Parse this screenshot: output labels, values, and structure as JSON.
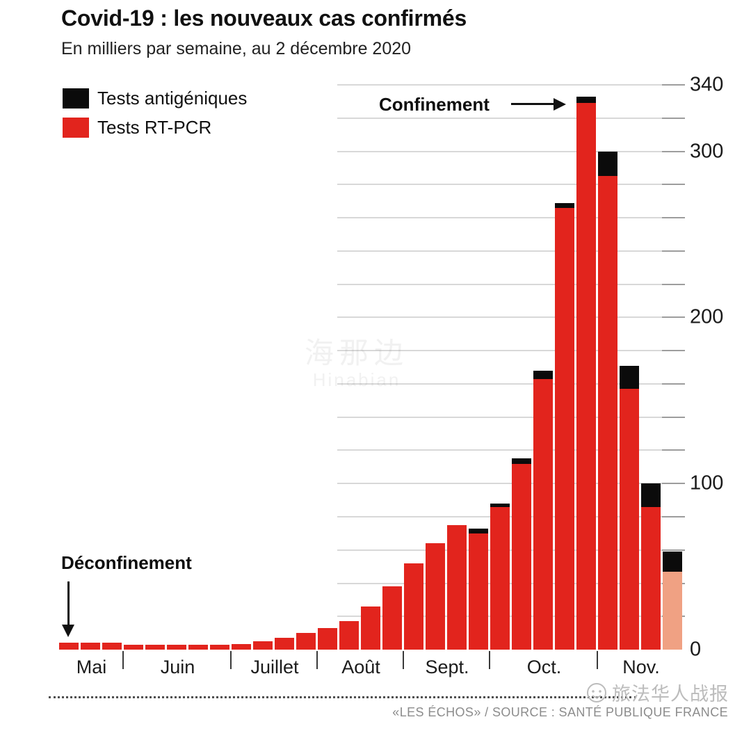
{
  "chart_data": {
    "type": "bar",
    "stacked": true,
    "title": "Covid-19 : les nouveaux cas confirmés",
    "subtitle": "En milliers par semaine, au 2 décembre 2020",
    "unit": "milliers de nouveaux cas confirmés par semaine",
    "ylim": [
      0,
      340
    ],
    "ytick_labels": [
      0,
      100,
      200,
      300,
      340
    ],
    "gridline_step": 20,
    "grid": true,
    "legend_position": "top-left",
    "months": [
      {
        "label": "Mai",
        "weeks": 3
      },
      {
        "label": "Juin",
        "weeks": 5
      },
      {
        "label": "Juillet",
        "weeks": 4
      },
      {
        "label": "Août",
        "weeks": 4
      },
      {
        "label": "Sept.",
        "weeks": 4
      },
      {
        "label": "Oct.",
        "weeks": 5
      },
      {
        "label": "Nov.",
        "weeks": 4
      }
    ],
    "series": [
      {
        "name": "Tests RT-PCR",
        "color": "#e2241d",
        "values": [
          4,
          4,
          4,
          3,
          3,
          3,
          3,
          3,
          3.5,
          5,
          7,
          10,
          13,
          17,
          26,
          38,
          52,
          64,
          75,
          70,
          86,
          112,
          163,
          266,
          329,
          285,
          157,
          86,
          47
        ]
      },
      {
        "name": "Tests antigéniques",
        "color": "#0b0b0b",
        "values": [
          0,
          0,
          0,
          0,
          0,
          0,
          0,
          0,
          0,
          0,
          0,
          0,
          0,
          0,
          0,
          0,
          0,
          0,
          0,
          3,
          2,
          3,
          5,
          3,
          4,
          15,
          14,
          14,
          12
        ]
      }
    ],
    "provisional_last_bar": {
      "color": "#f0a183"
    },
    "annotations": [
      {
        "text": "Confinement",
        "bar_index": 24
      },
      {
        "text": "Déconfinement",
        "bar_index": 0
      }
    ]
  },
  "watermarks": {
    "center_line1": "海那边",
    "center_line2": "Hinabian",
    "bottom": "旅法华人战报"
  },
  "footer": {
    "source": "«LES ÉCHOS» / SOURCE : SANTÉ PUBLIQUE FRANCE"
  }
}
